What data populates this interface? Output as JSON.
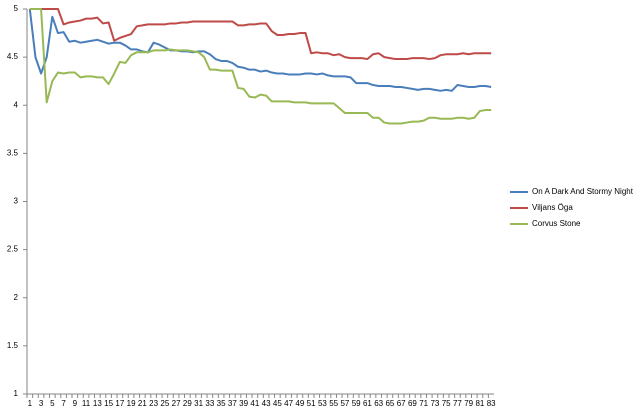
{
  "chart_data": {
    "type": "line",
    "categories": [
      1,
      null,
      3,
      null,
      5,
      null,
      7,
      null,
      9,
      null,
      11,
      null,
      13,
      null,
      15,
      null,
      17,
      null,
      19,
      null,
      21,
      null,
      23,
      null,
      25,
      null,
      27,
      null,
      29,
      null,
      31,
      null,
      33,
      null,
      35,
      null,
      37,
      null,
      39,
      null,
      41,
      null,
      43,
      null,
      45,
      null,
      47,
      null,
      49,
      null,
      51,
      null,
      53,
      null,
      55,
      null,
      57,
      null,
      59,
      null,
      61,
      null,
      63,
      null,
      65,
      null,
      67,
      null,
      69,
      null,
      71,
      null,
      73,
      null,
      75,
      null,
      77,
      null,
      79,
      null,
      81,
      null,
      83
    ],
    "series": [
      {
        "name": "On A Dark And Stormy Night",
        "color": "#4a7ebb",
        "values": [
          5,
          4.5,
          4.33,
          4.5,
          4.92,
          4.75,
          4.76,
          4.66,
          4.67,
          4.65,
          4.66,
          4.67,
          4.68,
          4.66,
          4.64,
          4.65,
          4.65,
          4.62,
          4.58,
          4.58,
          4.56,
          4.55,
          4.65,
          4.63,
          4.6,
          4.57,
          4.57,
          4.56,
          4.56,
          4.55,
          4.56,
          4.56,
          4.53,
          4.48,
          4.46,
          4.46,
          4.44,
          4.4,
          4.39,
          4.37,
          4.37,
          4.35,
          4.36,
          4.34,
          4.33,
          4.33,
          4.32,
          4.32,
          4.32,
          4.33,
          4.33,
          4.32,
          4.33,
          4.31,
          4.3,
          4.3,
          4.3,
          4.29,
          4.23,
          4.23,
          4.23,
          4.21,
          4.2,
          4.2,
          4.2,
          4.19,
          4.19,
          4.18,
          4.17,
          4.16,
          4.17,
          4.17,
          4.16,
          4.15,
          4.16,
          4.15,
          4.21,
          4.2,
          4.19,
          4.19,
          4.2,
          4.2,
          4.19
        ]
      },
      {
        "name": "Viljans Öga",
        "color": "#be4b48",
        "values": [
          5,
          5,
          5,
          5,
          5,
          5,
          4.84,
          4.86,
          4.87,
          4.88,
          4.9,
          4.9,
          4.91,
          4.85,
          4.86,
          4.67,
          4.7,
          4.72,
          4.74,
          4.82,
          4.83,
          4.84,
          4.84,
          4.84,
          4.84,
          4.85,
          4.85,
          4.86,
          4.86,
          4.87,
          4.87,
          4.87,
          4.87,
          4.87,
          4.87,
          4.87,
          4.87,
          4.83,
          4.83,
          4.84,
          4.84,
          4.85,
          4.85,
          4.77,
          4.73,
          4.73,
          4.74,
          4.74,
          4.75,
          4.75,
          4.54,
          4.55,
          4.54,
          4.54,
          4.52,
          4.53,
          4.5,
          4.49,
          4.49,
          4.49,
          4.48,
          4.53,
          4.54,
          4.5,
          4.49,
          4.48,
          4.48,
          4.48,
          4.49,
          4.49,
          4.49,
          4.48,
          4.49,
          4.52,
          4.53,
          4.53,
          4.53,
          4.54,
          4.53,
          4.54,
          4.54,
          4.54,
          4.54
        ]
      },
      {
        "name": "Corvus Stone",
        "color": "#98b954",
        "values": [
          5,
          5,
          5,
          4.03,
          4.25,
          4.34,
          4.33,
          4.34,
          4.34,
          4.29,
          4.3,
          4.3,
          4.29,
          4.29,
          4.22,
          4.33,
          4.45,
          4.44,
          4.52,
          4.55,
          4.55,
          4.55,
          4.57,
          4.57,
          4.57,
          4.58,
          4.57,
          4.57,
          4.57,
          4.56,
          4.55,
          4.5,
          4.37,
          4.37,
          4.36,
          4.36,
          4.36,
          4.18,
          4.17,
          4.09,
          4.08,
          4.11,
          4.1,
          4.04,
          4.04,
          4.04,
          4.04,
          4.03,
          4.03,
          4.03,
          4.02,
          4.02,
          4.02,
          4.02,
          4.02,
          3.97,
          3.92,
          3.92,
          3.92,
          3.92,
          3.92,
          3.87,
          3.87,
          3.82,
          3.81,
          3.81,
          3.81,
          3.82,
          3.83,
          3.83,
          3.84,
          3.87,
          3.87,
          3.86,
          3.86,
          3.86,
          3.87,
          3.87,
          3.86,
          3.87,
          3.94,
          3.95,
          3.95
        ]
      }
    ],
    "ylim": [
      1,
      5
    ],
    "yticks": [
      1,
      1.5,
      2,
      2.5,
      3,
      3.5,
      4,
      4.5,
      5
    ],
    "grid": false,
    "legend": "right"
  }
}
